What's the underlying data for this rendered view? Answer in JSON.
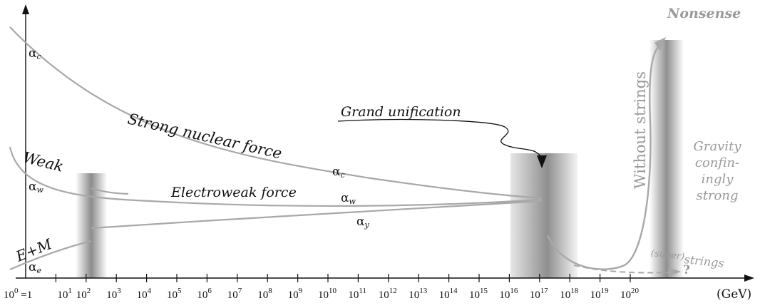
{
  "x_axis": {
    "unit": "(GeV)",
    "ticks": [
      {
        "base": "10",
        "exp": "0",
        "suffix": " =1"
      },
      {
        "base": "10",
        "exp": "1",
        "suffix": ""
      },
      {
        "base": "10",
        "exp": "2",
        "suffix": ""
      },
      {
        "base": "10",
        "exp": "3",
        "suffix": ""
      },
      {
        "base": "10",
        "exp": "4",
        "suffix": ""
      },
      {
        "base": "10",
        "exp": "5",
        "suffix": ""
      },
      {
        "base": "10",
        "exp": "6",
        "suffix": ""
      },
      {
        "base": "10",
        "exp": "7",
        "suffix": ""
      },
      {
        "base": "10",
        "exp": "8",
        "suffix": ""
      },
      {
        "base": "10",
        "exp": "9",
        "suffix": ""
      },
      {
        "base": "10",
        "exp": "10",
        "suffix": ""
      },
      {
        "base": "10",
        "exp": "11",
        "suffix": ""
      },
      {
        "base": "10",
        "exp": "12",
        "suffix": ""
      },
      {
        "base": "10",
        "exp": "13",
        "suffix": ""
      },
      {
        "base": "10",
        "exp": "14",
        "suffix": ""
      },
      {
        "base": "10",
        "exp": "15",
        "suffix": ""
      },
      {
        "base": "10",
        "exp": "16",
        "suffix": ""
      },
      {
        "base": "10",
        "exp": "17",
        "suffix": ""
      },
      {
        "base": "10",
        "exp": "18",
        "suffix": ""
      },
      {
        "base": "10",
        "exp": "19",
        "suffix": ""
      },
      {
        "base": "10",
        "exp": "20",
        "suffix": ""
      }
    ]
  },
  "labels": {
    "strong": "Strong nuclear force",
    "weak": "Weak",
    "em": "E+M",
    "electroweak": "Electroweak force",
    "grand": "Grand unification",
    "without_strings": "Without strings",
    "nonsense": "Nonsense",
    "gravity_1": "Gravity",
    "gravity_2": "confin-",
    "gravity_3": "ingly",
    "gravity_4": "strong",
    "super_1": "(super)",
    "super_2": "strings",
    "question": "?"
  },
  "couplings": {
    "alpha": "α",
    "c": "c",
    "w": "w",
    "e": "e",
    "y": "y"
  },
  "colors": {
    "curve": "#a8a8a8",
    "text": "#111111",
    "gray_text": "#9a9a9a",
    "band": "#8a8a8a"
  }
}
